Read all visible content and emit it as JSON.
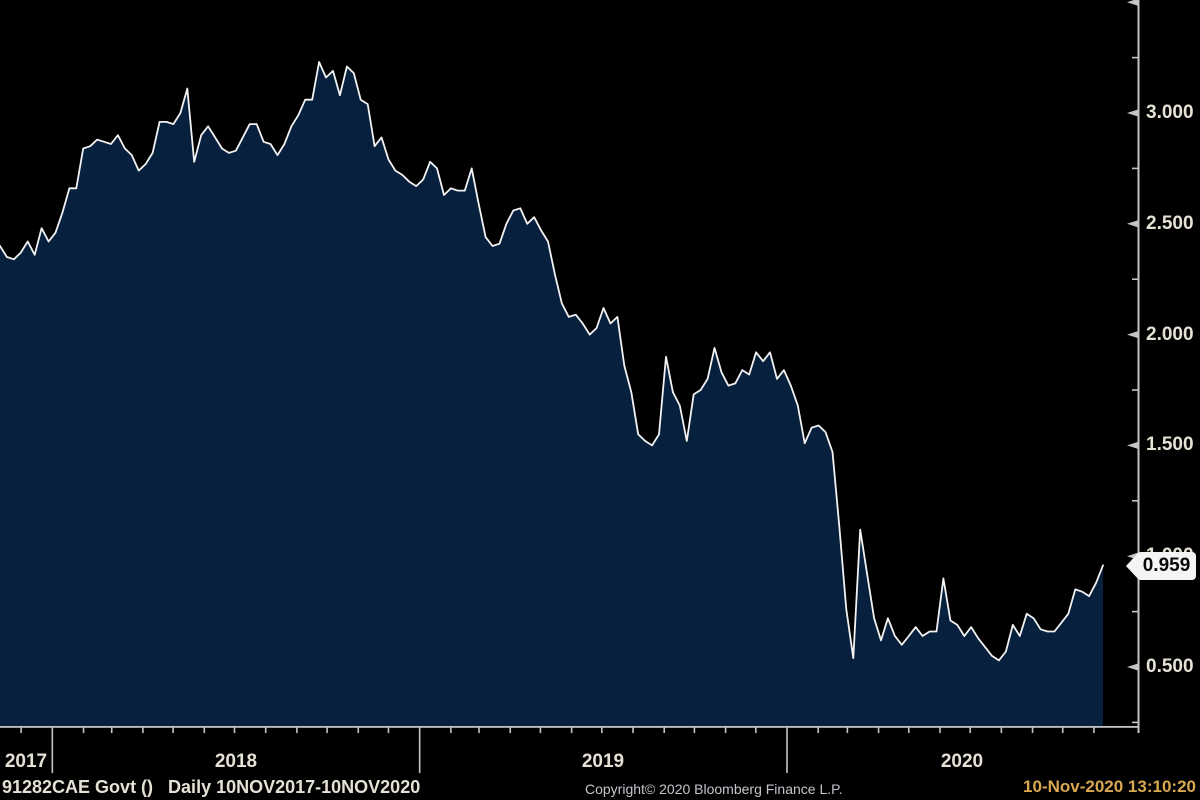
{
  "window": {
    "background": "#000000"
  },
  "chart_data": {
    "type": "area",
    "title": "",
    "security": "91282CAE Govt",
    "frequency": "Daily",
    "period_start": "2017-11-10",
    "period_end": "2020-11-10",
    "x_axis": {
      "year_labels": [
        "2017",
        "2018",
        "2019",
        "2020"
      ],
      "minor_tick_unit": "month"
    },
    "y_axis": {
      "side": "right",
      "ticks": [
        {
          "value": 3.0,
          "label": "3.000"
        },
        {
          "value": 2.5,
          "label": "2.500"
        },
        {
          "value": 2.0,
          "label": "2.000"
        },
        {
          "value": 1.5,
          "label": "1.500"
        },
        {
          "value": 1.0,
          "label": "1.000"
        },
        {
          "value": 0.5,
          "label": "0.500"
        }
      ],
      "top_major_tick": 3.5,
      "minor_tick_step": 0.25,
      "ymin": 0.227,
      "ymax": 3.53
    },
    "last": {
      "value": 0.959,
      "label": "0.959"
    },
    "series": [
      {
        "name": "91282CAE Govt",
        "cadence": "weekly",
        "values": [
          2.4,
          2.35,
          2.34,
          2.37,
          2.42,
          2.36,
          2.48,
          2.42,
          2.46,
          2.55,
          2.66,
          2.66,
          2.84,
          2.85,
          2.88,
          2.87,
          2.86,
          2.9,
          2.84,
          2.81,
          2.74,
          2.77,
          2.82,
          2.96,
          2.96,
          2.95,
          3.0,
          3.11,
          2.78,
          2.9,
          2.94,
          2.89,
          2.84,
          2.82,
          2.83,
          2.89,
          2.95,
          2.95,
          2.87,
          2.86,
          2.81,
          2.86,
          2.94,
          2.99,
          3.06,
          3.06,
          3.23,
          3.16,
          3.19,
          3.08,
          3.21,
          3.18,
          3.06,
          3.04,
          2.85,
          2.89,
          2.79,
          2.74,
          2.72,
          2.69,
          2.67,
          2.7,
          2.78,
          2.75,
          2.63,
          2.66,
          2.65,
          2.65,
          2.75,
          2.59,
          2.44,
          2.4,
          2.41,
          2.5,
          2.56,
          2.57,
          2.5,
          2.53,
          2.47,
          2.42,
          2.27,
          2.14,
          2.08,
          2.09,
          2.05,
          2.0,
          2.03,
          2.12,
          2.05,
          2.08,
          1.86,
          1.74,
          1.55,
          1.52,
          1.5,
          1.55,
          1.9,
          1.74,
          1.68,
          1.52,
          1.73,
          1.75,
          1.8,
          1.94,
          1.83,
          1.77,
          1.78,
          1.84,
          1.82,
          1.92,
          1.88,
          1.92,
          1.8,
          1.84,
          1.77,
          1.68,
          1.51,
          1.58,
          1.59,
          1.56,
          1.47,
          1.13,
          0.76,
          0.54,
          1.12,
          0.92,
          0.72,
          0.62,
          0.72,
          0.64,
          0.6,
          0.64,
          0.68,
          0.64,
          0.66,
          0.66,
          0.9,
          0.71,
          0.69,
          0.64,
          0.68,
          0.63,
          0.59,
          0.55,
          0.53,
          0.57,
          0.69,
          0.64,
          0.74,
          0.72,
          0.67,
          0.66,
          0.66,
          0.7,
          0.74,
          0.85,
          0.84,
          0.82,
          0.88,
          0.959
        ]
      }
    ],
    "colors": {
      "background": "#000000",
      "fill": "#07203d",
      "line": "#f2f2f2",
      "axis": "#c4c4c4",
      "axis_label": "#e6e1d5",
      "copyright_text": "#c2c6cc",
      "timestamp_text": "#d9a850",
      "bubble_bg": "#f4f4f4",
      "bubble_text": "#0a0a0a"
    }
  },
  "statusbar": {
    "left": "91282CAE Govt ()   Daily 10NOV2017-10NOV2020",
    "copyright": "Copyright© 2020 Bloomberg Finance L.P.",
    "timestamp": "10-Nov-2020 13:10:20"
  }
}
